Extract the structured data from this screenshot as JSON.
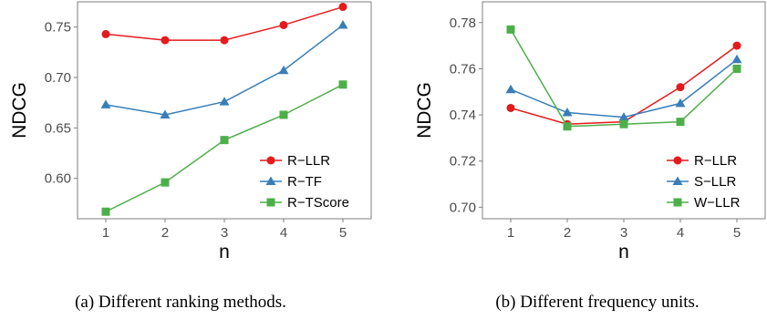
{
  "chart_data": [
    {
      "type": "line",
      "caption": "(a)  Different ranking methods.",
      "xlabel": "n",
      "ylabel": "NDCG",
      "x": [
        1,
        2,
        3,
        4,
        5
      ],
      "xticks": [
        "1",
        "2",
        "3",
        "4",
        "5"
      ],
      "ylim": [
        0.56,
        0.775
      ],
      "yticks": [
        0.6,
        0.65,
        0.7,
        0.75
      ],
      "ytick_labels": [
        "0.60",
        "0.65",
        "0.70",
        "0.75"
      ],
      "grid": false,
      "legend_position": "bottom-right",
      "series": [
        {
          "name": "R−LLR",
          "color": "#e41a1c",
          "marker": "circle",
          "values": [
            0.743,
            0.737,
            0.737,
            0.752,
            0.77
          ]
        },
        {
          "name": "R−TF",
          "color": "#377eb8",
          "marker": "triangle",
          "values": [
            0.673,
            0.663,
            0.676,
            0.707,
            0.752
          ]
        },
        {
          "name": "R−TScore",
          "color": "#4daf4a",
          "marker": "square",
          "values": [
            0.567,
            0.596,
            0.638,
            0.663,
            0.693
          ]
        }
      ]
    },
    {
      "type": "line",
      "caption": "(b)  Different frequency units.",
      "xlabel": "n",
      "ylabel": "NDCG",
      "x": [
        1,
        2,
        3,
        4,
        5
      ],
      "xticks": [
        "1",
        "2",
        "3",
        "4",
        "5"
      ],
      "ylim": [
        0.695,
        0.789
      ],
      "yticks": [
        0.7,
        0.72,
        0.74,
        0.76,
        0.78
      ],
      "ytick_labels": [
        "0.70",
        "0.72",
        "0.74",
        "0.76",
        "0.78"
      ],
      "grid": false,
      "legend_position": "bottom-right",
      "series": [
        {
          "name": "R−LLR",
          "color": "#e41a1c",
          "marker": "circle",
          "values": [
            0.743,
            0.736,
            0.737,
            0.752,
            0.77
          ]
        },
        {
          "name": "S−LLR",
          "color": "#377eb8",
          "marker": "triangle",
          "values": [
            0.751,
            0.741,
            0.739,
            0.745,
            0.764
          ]
        },
        {
          "name": "W−LLR",
          "color": "#4daf4a",
          "marker": "square",
          "values": [
            0.777,
            0.735,
            0.736,
            0.737,
            0.76
          ]
        }
      ]
    }
  ]
}
